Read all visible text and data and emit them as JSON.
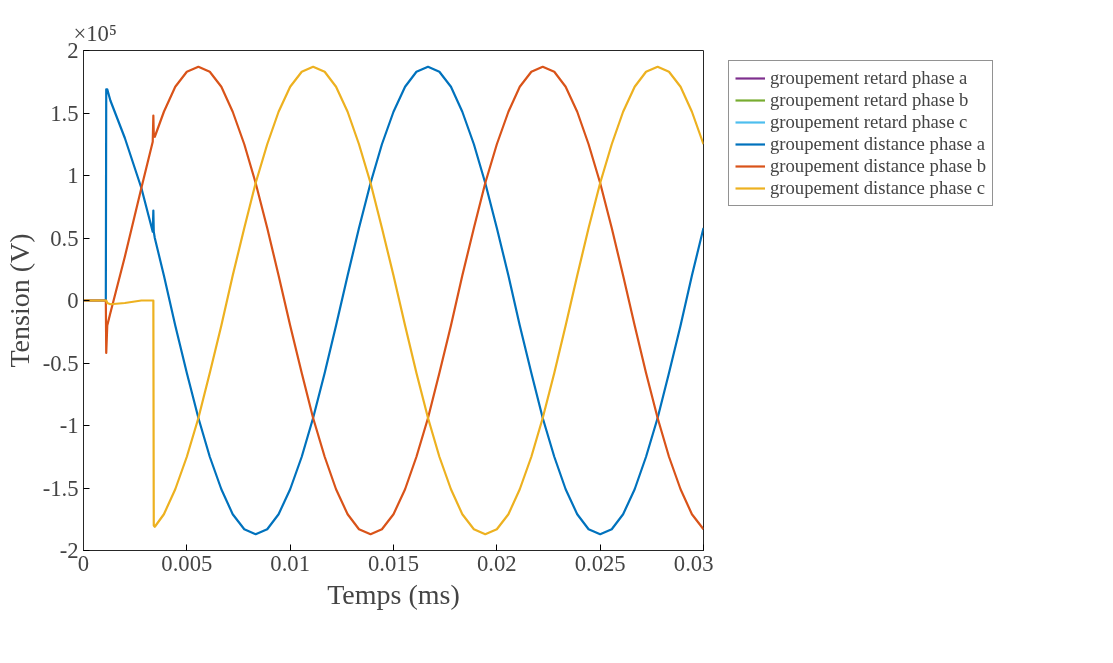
{
  "chart_data": {
    "type": "line",
    "xlabel": "Temps (ms)",
    "ylabel": "Tension (V)",
    "annotations": [
      "×10⁵"
    ],
    "x": [
      0,
      0.00108,
      0.0011,
      0.00115,
      0.0013,
      0.002,
      0.0028,
      0.00335,
      0.00338,
      0.0034,
      0.00345,
      0.00389,
      0.00444,
      0.005,
      0.00556,
      0.00611,
      0.00667,
      0.00722,
      0.00778,
      0.00833,
      0.00889,
      0.00944,
      0.01,
      0.01056,
      0.01111,
      0.01167,
      0.01222,
      0.01278,
      0.01333,
      0.01389,
      0.01444,
      0.015,
      0.01556,
      0.01611,
      0.01667,
      0.01722,
      0.01778,
      0.01833,
      0.01889,
      0.01944,
      0.02,
      0.02056,
      0.02111,
      0.02167,
      0.02222,
      0.02278,
      0.02333,
      0.02389,
      0.02444,
      0.025,
      0.02556,
      0.02611,
      0.02667,
      0.02722,
      0.02778,
      0.02833,
      0.02889,
      0.02944,
      0.03
    ],
    "xlim": [
      0,
      0.03
    ],
    "xticks": [
      0,
      0.005,
      0.01,
      0.015,
      0.02,
      0.025,
      0.03
    ],
    "ylim": [
      -2,
      2
    ],
    "yticks": [
      -2,
      -1.5,
      -1,
      -0.5,
      0,
      0.5,
      1,
      1.5,
      2
    ],
    "legend": "right",
    "line_style": "solid",
    "marker": "none",
    "series": [
      {
        "name": "groupement retard phase a",
        "color": "#7e2f8e",
        "values": [
          null,
          null,
          null,
          null,
          null,
          null,
          null,
          null,
          null,
          null,
          null,
          null,
          null,
          null,
          null,
          null,
          null,
          null,
          null,
          null,
          null,
          null,
          null,
          null,
          null,
          null,
          null,
          null,
          null,
          null,
          null,
          null,
          null,
          null,
          null,
          null,
          null,
          null,
          null,
          null,
          null,
          null,
          null,
          null,
          null,
          null,
          null,
          null,
          null,
          null,
          null,
          null,
          null,
          null,
          null,
          null,
          null,
          null,
          null
        ]
      },
      {
        "name": "groupement retard phase b",
        "color": "#77ac30",
        "values": [
          null,
          null,
          null,
          null,
          null,
          null,
          null,
          null,
          null,
          null,
          null,
          null,
          null,
          null,
          null,
          null,
          null,
          null,
          null,
          null,
          null,
          null,
          null,
          null,
          null,
          null,
          null,
          null,
          null,
          null,
          null,
          null,
          null,
          null,
          null,
          null,
          null,
          null,
          null,
          null,
          null,
          null,
          null,
          null,
          null,
          null,
          null,
          null,
          null,
          null,
          null,
          null,
          null,
          null,
          null,
          null,
          null,
          null,
          null
        ]
      },
      {
        "name": "groupement retard phase c",
        "color": "#4dbeee",
        "values": [
          null,
          null,
          null,
          null,
          null,
          null,
          null,
          null,
          null,
          null,
          null,
          null,
          null,
          null,
          null,
          null,
          null,
          null,
          null,
          null,
          null,
          null,
          null,
          null,
          null,
          null,
          null,
          null,
          null,
          null,
          null,
          null,
          null,
          null,
          null,
          null,
          null,
          null,
          null,
          null,
          null,
          null,
          null,
          null,
          null,
          null,
          null,
          null,
          null,
          null,
          null,
          null,
          null,
          null,
          null,
          null,
          null,
          null,
          null
        ]
      },
      {
        "name": "groupement distance phase a",
        "color": "#0072bd",
        "values": [
          0,
          0,
          1.69,
          1.69,
          1.6,
          1.3,
          0.9,
          0.55,
          0.72,
          0.55,
          0.5,
          0.2,
          -0.2,
          -0.58,
          -0.94,
          -1.25,
          -1.51,
          -1.71,
          -1.83,
          -1.87,
          -1.83,
          -1.71,
          -1.51,
          -1.25,
          -0.94,
          -0.58,
          -0.2,
          0.2,
          0.58,
          0.94,
          1.25,
          1.51,
          1.71,
          1.83,
          1.87,
          1.83,
          1.71,
          1.51,
          1.25,
          0.94,
          0.58,
          0.2,
          -0.2,
          -0.58,
          -0.94,
          -1.25,
          -1.51,
          -1.71,
          -1.83,
          -1.87,
          -1.83,
          -1.71,
          -1.51,
          -1.25,
          -0.94,
          -0.58,
          -0.2,
          0.2,
          0.58
        ]
      },
      {
        "name": "groupement distance phase b",
        "color": "#d95319",
        "values": [
          0,
          0,
          -0.42,
          -0.2,
          -0.1,
          0.35,
          0.9,
          1.27,
          1.48,
          1.33,
          1.31,
          1.51,
          1.71,
          1.83,
          1.87,
          1.83,
          1.71,
          1.51,
          1.25,
          0.94,
          0.58,
          0.2,
          -0.2,
          -0.58,
          -0.94,
          -1.25,
          -1.51,
          -1.71,
          -1.83,
          -1.87,
          -1.83,
          -1.71,
          -1.51,
          -1.25,
          -0.94,
          -0.58,
          -0.2,
          0.2,
          0.58,
          0.94,
          1.25,
          1.51,
          1.71,
          1.83,
          1.87,
          1.83,
          1.71,
          1.51,
          1.25,
          0.94,
          0.58,
          0.2,
          -0.2,
          -0.58,
          -0.94,
          -1.25,
          -1.51,
          -1.71,
          -1.83
        ]
      },
      {
        "name": "groupement distance phase c",
        "color": "#edb120",
        "values": [
          0,
          0,
          0,
          -0.02,
          -0.03,
          -0.02,
          0,
          0,
          0,
          -1.8,
          -1.81,
          -1.71,
          -1.51,
          -1.25,
          -0.94,
          -0.58,
          -0.2,
          0.2,
          0.58,
          0.94,
          1.25,
          1.51,
          1.71,
          1.83,
          1.87,
          1.83,
          1.71,
          1.51,
          1.25,
          0.94,
          0.58,
          0.2,
          -0.2,
          -0.58,
          -0.94,
          -1.25,
          -1.51,
          -1.71,
          -1.83,
          -1.87,
          -1.83,
          -1.71,
          -1.51,
          -1.25,
          -0.94,
          -0.58,
          -0.2,
          0.2,
          0.58,
          0.94,
          1.25,
          1.51,
          1.71,
          1.83,
          1.87,
          1.83,
          1.71,
          1.51,
          1.25
        ]
      }
    ]
  }
}
